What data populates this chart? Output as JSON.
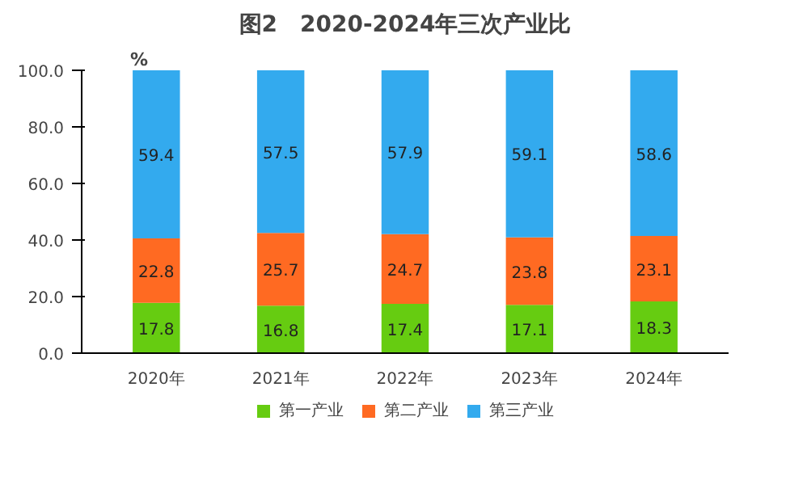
{
  "chart_data": {
    "type": "bar",
    "title": "图2　2020-2024年三次产业比",
    "ylabel": "%",
    "stacked": true,
    "data_labels": true,
    "legend": "bottom",
    "grid": false,
    "categories": [
      "2020年",
      "2021年",
      "2022年",
      "2023年",
      "2024年"
    ],
    "ylim": [
      0,
      100
    ],
    "yticks": [
      {
        "value": 0,
        "label": "0.0"
      },
      {
        "value": 20,
        "label": "20.0"
      },
      {
        "value": 40,
        "label": "40.0"
      },
      {
        "value": 60,
        "label": "60.0"
      },
      {
        "value": 80,
        "label": "80.0"
      },
      {
        "value": 100,
        "label": "100.0"
      }
    ],
    "series": [
      {
        "name": "第一产业",
        "color": "#66cc11",
        "values": [
          17.8,
          16.8,
          17.4,
          17.1,
          18.3
        ]
      },
      {
        "name": "第二产业",
        "color": "#ff6a22",
        "values": [
          22.8,
          25.7,
          24.7,
          23.8,
          23.1
        ]
      },
      {
        "name": "第三产业",
        "color": "#33aaee",
        "values": [
          59.4,
          57.5,
          57.9,
          59.1,
          58.6
        ]
      }
    ]
  }
}
